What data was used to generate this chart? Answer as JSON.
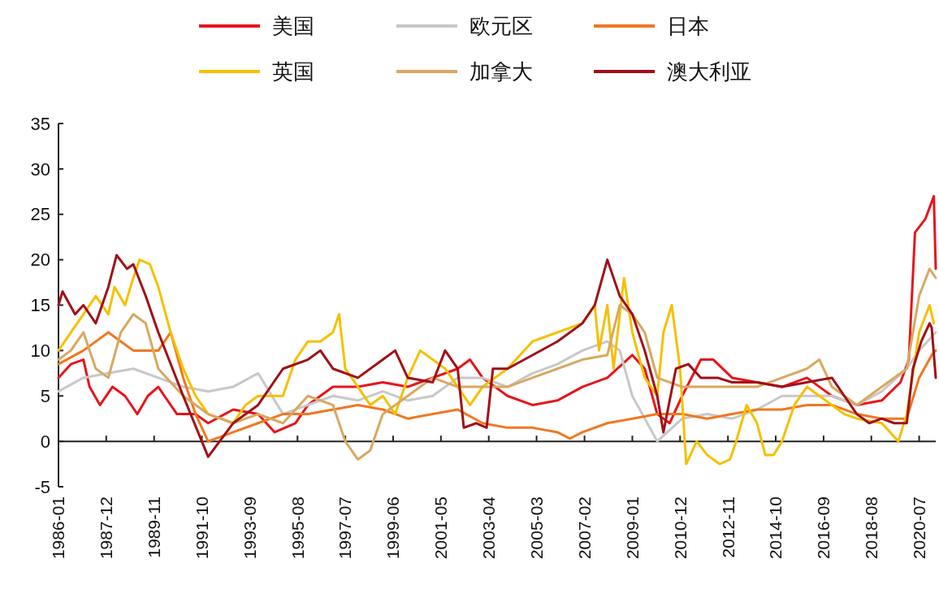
{
  "chart_data": {
    "type": "line",
    "legend": "top",
    "line_style": "solid",
    "marker": "none",
    "xlim": [
      "1986-01",
      "2021-03"
    ],
    "xticks": [
      "1986-01",
      "1987-12",
      "1989-11",
      "1991-10",
      "1993-09",
      "1995-08",
      "1997-07",
      "1999-06",
      "2001-05",
      "2003-04",
      "2005-03",
      "2007-02",
      "2009-01",
      "2010-12",
      "2012-11",
      "2014-10",
      "2016-09",
      "2018-08",
      "2020-07"
    ],
    "ylim": [
      -5,
      35
    ],
    "yticks": [
      -5,
      0,
      5,
      10,
      15,
      20,
      25,
      30,
      35
    ],
    "series": [
      {
        "name": "美国",
        "color": "#e8141c",
        "x": [
          "1986-01",
          "1986-07",
          "1987-01",
          "1987-04",
          "1987-09",
          "1988-03",
          "1988-09",
          "1989-03",
          "1989-08",
          "1990-01",
          "1990-04",
          "1990-10",
          "1991-07",
          "1992-01",
          "1993-01",
          "1994-01",
          "1994-09",
          "1995-07",
          "1996-01",
          "1996-07",
          "1997-01",
          "1998-01",
          "1999-01",
          "2000-01",
          "2001-01",
          "2002-01",
          "2002-07",
          "2003-01",
          "2004-01",
          "2005-01",
          "2006-01",
          "2007-01",
          "2008-01",
          "2009-01",
          "2009-07",
          "2010-01",
          "2010-07",
          "2011-01",
          "2011-10",
          "2012-04",
          "2013-01",
          "2014-01",
          "2015-01",
          "2016-01",
          "2017-01",
          "2018-01",
          "2019-01",
          "2019-10",
          "2020-02",
          "2020-05",
          "2020-10",
          "2021-02",
          "2021-03"
        ],
        "values": [
          7,
          8.5,
          9,
          6,
          4,
          6,
          5,
          3,
          5,
          6,
          5,
          3,
          3,
          2,
          3.5,
          3,
          1,
          2,
          4,
          5,
          6,
          6,
          6.5,
          6,
          7,
          8,
          9,
          7,
          5,
          4,
          4.5,
          6,
          7,
          9.5,
          8,
          3,
          2,
          5,
          9,
          9,
          7,
          6.5,
          6,
          7,
          5,
          4,
          4.5,
          6.5,
          9,
          23,
          24.5,
          27,
          19
        ]
      },
      {
        "name": "欧元区",
        "color": "#c8c8c8",
        "x": [
          "1986-01",
          "1987-01",
          "1988-01",
          "1989-01",
          "1990-01",
          "1991-01",
          "1992-01",
          "1993-01",
          "1994-01",
          "1995-01",
          "1996-01",
          "1997-01",
          "1998-01",
          "1999-01",
          "2000-01",
          "2001-01",
          "2002-01",
          "2003-01",
          "2004-01",
          "2005-01",
          "2006-01",
          "2007-01",
          "2008-01",
          "2008-07",
          "2009-01",
          "2010-01",
          "2011-01",
          "2012-01",
          "2013-01",
          "2014-01",
          "2015-01",
          "2016-01",
          "2017-01",
          "2018-01",
          "2019-01",
          "2020-01",
          "2020-07",
          "2021-03"
        ],
        "values": [
          5.5,
          7,
          7.5,
          8,
          7,
          6,
          5.5,
          6,
          7.5,
          3,
          4,
          5,
          4.5,
          5.5,
          4.5,
          5,
          7,
          7,
          6,
          7.5,
          8.5,
          10,
          11,
          10,
          5,
          0,
          2.5,
          3,
          2.5,
          3.5,
          5,
          5,
          5,
          4,
          5.5,
          8,
          10,
          12
        ]
      },
      {
        "name": "日本",
        "color": "#f07820",
        "x": [
          "1986-01",
          "1987-01",
          "1988-01",
          "1988-07",
          "1989-01",
          "1990-01",
          "1990-07",
          "1991-01",
          "1991-07",
          "1992-01",
          "1993-01",
          "1994-01",
          "1995-01",
          "1996-01",
          "1997-01",
          "1998-01",
          "1999-01",
          "2000-01",
          "2001-01",
          "2002-01",
          "2003-01",
          "2004-01",
          "2005-01",
          "2006-01",
          "2006-07",
          "2007-01",
          "2008-01",
          "2009-01",
          "2010-01",
          "2011-01",
          "2012-01",
          "2013-01",
          "2014-01",
          "2015-01",
          "2016-01",
          "2017-01",
          "2018-01",
          "2019-01",
          "2020-01",
          "2020-07",
          "2021-01",
          "2021-03"
        ],
        "values": [
          8.5,
          10,
          12,
          11,
          10,
          10,
          12,
          7,
          3,
          0,
          1,
          2,
          3,
          3,
          3.5,
          4,
          3.5,
          2.5,
          3,
          3.5,
          2,
          1.5,
          1.5,
          1,
          0.3,
          1,
          2,
          2.5,
          3,
          3,
          2.5,
          3,
          3.5,
          3.5,
          4,
          4,
          3,
          2.5,
          2.5,
          7,
          9.5,
          10
        ]
      },
      {
        "name": "英国",
        "color": "#f5c000",
        "x": [
          "1986-01",
          "1987-01",
          "1987-07",
          "1988-01",
          "1988-04",
          "1988-09",
          "1989-01",
          "1989-04",
          "1989-09",
          "1990-01",
          "1990-07",
          "1991-01",
          "1991-07",
          "1992-01",
          "1993-01",
          "1993-07",
          "1994-01",
          "1995-01",
          "1995-07",
          "1996-01",
          "1996-07",
          "1997-01",
          "1997-04",
          "1997-07",
          "1998-01",
          "1998-07",
          "1999-01",
          "1999-07",
          "2000-01",
          "2000-07",
          "2001-01",
          "2001-07",
          "2002-01",
          "2002-07",
          "2003-01",
          "2004-01",
          "2005-01",
          "2006-01",
          "2007-01",
          "2007-07",
          "2007-09",
          "2008-01",
          "2008-04",
          "2008-09",
          "2009-01",
          "2009-07",
          "2010-01",
          "2010-04",
          "2010-08",
          "2010-12",
          "2011-03",
          "2011-08",
          "2012-01",
          "2012-07",
          "2012-12",
          "2013-03",
          "2013-08",
          "2014-01",
          "2014-05",
          "2014-09",
          "2015-01",
          "2015-07",
          "2016-01",
          "2016-07",
          "2017-01",
          "2017-07",
          "2018-01",
          "2019-01",
          "2019-09",
          "2020-01",
          "2020-07",
          "2020-12",
          "2021-02"
        ],
        "values": [
          10,
          14,
          16,
          14,
          17,
          15,
          18,
          20,
          19.5,
          17,
          12,
          8,
          5,
          3,
          2,
          4,
          5,
          5,
          9,
          11,
          11,
          12,
          14,
          8,
          6,
          4,
          5,
          3,
          7,
          10,
          9,
          8,
          6,
          4,
          6,
          8,
          11,
          12,
          13,
          15,
          10,
          15,
          8,
          18,
          12,
          7,
          5,
          12,
          15,
          8,
          -2.5,
          0,
          -1.5,
          -2.5,
          -2,
          0,
          4,
          2,
          -1.5,
          -1.5,
          0,
          4,
          6,
          5,
          4,
          3,
          2.5,
          2,
          0,
          3,
          12,
          15,
          13
        ]
      },
      {
        "name": "加拿大",
        "color": "#d8a860",
        "x": [
          "1986-01",
          "1986-07",
          "1987-01",
          "1987-07",
          "1988-01",
          "1988-07",
          "1989-01",
          "1989-07",
          "1990-01",
          "1991-01",
          "1992-01",
          "1993-01",
          "1994-01",
          "1995-01",
          "1996-01",
          "1997-01",
          "1997-07",
          "1998-01",
          "1998-07",
          "1999-01",
          "2000-01",
          "2001-01",
          "2002-01",
          "2003-01",
          "2004-01",
          "2005-01",
          "2006-01",
          "2007-01",
          "2008-01",
          "2008-07",
          "2009-01",
          "2009-07",
          "2010-01",
          "2011-01",
          "2012-01",
          "2013-01",
          "2014-01",
          "2015-01",
          "2016-01",
          "2016-07",
          "2017-01",
          "2018-01",
          "2019-01",
          "2020-01",
          "2020-07",
          "2020-12",
          "2021-03"
        ],
        "values": [
          9,
          10,
          12,
          8,
          7,
          12,
          14,
          13,
          8,
          5,
          3,
          2,
          3,
          2,
          5,
          4,
          0,
          -2,
          -1,
          3,
          5,
          7,
          6,
          6,
          6,
          7,
          8,
          9,
          9.5,
          15,
          14,
          12,
          7,
          6,
          6,
          6,
          6,
          7,
          8,
          9,
          6,
          4,
          6,
          8,
          16,
          19,
          18
        ]
      },
      {
        "name": "澳大利亚",
        "color": "#a01018",
        "x": [
          "1986-01",
          "1986-03",
          "1986-09",
          "1987-01",
          "1987-07",
          "1988-01",
          "1988-05",
          "1988-10",
          "1989-01",
          "1989-07",
          "1989-10",
          "1990-01",
          "1991-01",
          "1992-01",
          "1993-01",
          "1994-01",
          "1995-01",
          "1996-01",
          "1996-07",
          "1997-01",
          "1998-01",
          "1999-01",
          "1999-07",
          "2000-01",
          "2001-01",
          "2001-07",
          "2002-01",
          "2002-04",
          "2002-10",
          "2003-03",
          "2003-06",
          "2004-01",
          "2005-01",
          "2006-01",
          "2007-01",
          "2007-07",
          "2008-01",
          "2008-07",
          "2009-01",
          "2009-07",
          "2010-01",
          "2010-04",
          "2010-10",
          "2011-04",
          "2011-10",
          "2012-06",
          "2013-01",
          "2014-01",
          "2015-01",
          "2016-01",
          "2017-01",
          "2017-07",
          "2018-01",
          "2018-07",
          "2019-01",
          "2019-07",
          "2020-01",
          "2020-04",
          "2020-08",
          "2020-12",
          "2021-01",
          "2021-03"
        ],
        "values": [
          15,
          16.5,
          14,
          15,
          13,
          17,
          20.5,
          19,
          19.5,
          16,
          14,
          12,
          5,
          -1.7,
          2,
          4,
          8,
          9,
          10,
          8,
          7,
          9,
          10,
          7,
          6.5,
          10,
          8,
          1.5,
          2,
          1.5,
          8,
          8,
          9.5,
          11,
          13,
          15,
          20,
          16,
          14,
          10,
          5,
          1,
          8,
          8.5,
          7,
          7,
          6.5,
          6.5,
          6,
          6.5,
          7,
          5,
          3,
          2,
          2.5,
          2,
          2,
          8,
          11,
          13,
          12.5,
          7
        ]
      }
    ]
  }
}
